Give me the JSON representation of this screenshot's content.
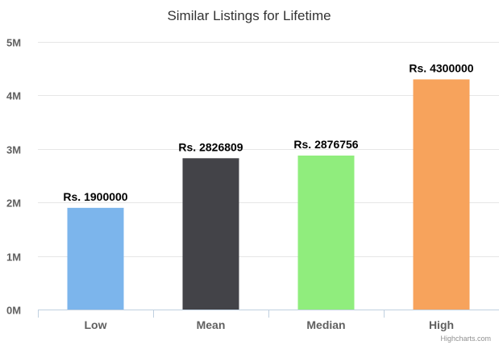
{
  "chart_data": {
    "type": "bar",
    "title": "Similar Listings for Lifetime",
    "categories": [
      "Low",
      "Mean",
      "Median",
      "High"
    ],
    "values": [
      1900000,
      2826809,
      2876756,
      4300000
    ],
    "data_labels": [
      "Rs. 1900000",
      "Rs. 2826809",
      "Rs. 2876756",
      "Rs. 4300000"
    ],
    "colors": [
      "#7cb5ec",
      "#434348",
      "#90ed7d",
      "#f7a35c"
    ],
    "yticks": [
      0,
      1000000,
      2000000,
      3000000,
      4000000,
      5000000
    ],
    "ytick_labels": [
      "0M",
      "1M",
      "2M",
      "3M",
      "4M",
      "5M"
    ],
    "ylim": [
      0,
      5000000
    ],
    "xlabel": "",
    "ylabel": "",
    "grid": true,
    "legend": "none"
  },
  "credit": "Highcharts.com"
}
